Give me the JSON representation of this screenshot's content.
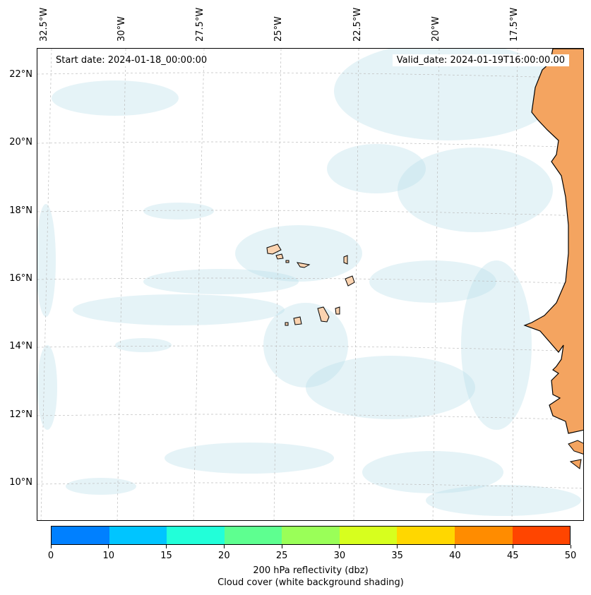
{
  "map": {
    "start_date": "Start date: 2024-01-18_00:00:00",
    "valid_date": "Valid_date: 2024-01-19T16:00:00.00",
    "lon_labels": [
      "32.5°W",
      "30°W",
      "27.5°W",
      "25°W",
      "22.5°W",
      "20°W",
      "17.5°W"
    ],
    "lat_labels": [
      "22°N",
      "20°N",
      "18°N",
      "16°N",
      "14°N",
      "12°N",
      "10°N"
    ],
    "land_color": "#f4a460",
    "island_color": "#fbd3b0",
    "cloud_color": "#b5dce9"
  },
  "colorbar": {
    "ticks": [
      "0",
      "10",
      "15",
      "20",
      "25",
      "30",
      "35",
      "40",
      "45",
      "50"
    ],
    "colors": [
      "#0080ff",
      "#00c5ff",
      "#22ffd9",
      "#5eff90",
      "#9aff58",
      "#d7ff1e",
      "#ffd700",
      "#ff8c00",
      "#ff4500"
    ],
    "label": "200 hPa reflectivity (dbz)",
    "sublabel": "Cloud cover (white background shading)"
  }
}
